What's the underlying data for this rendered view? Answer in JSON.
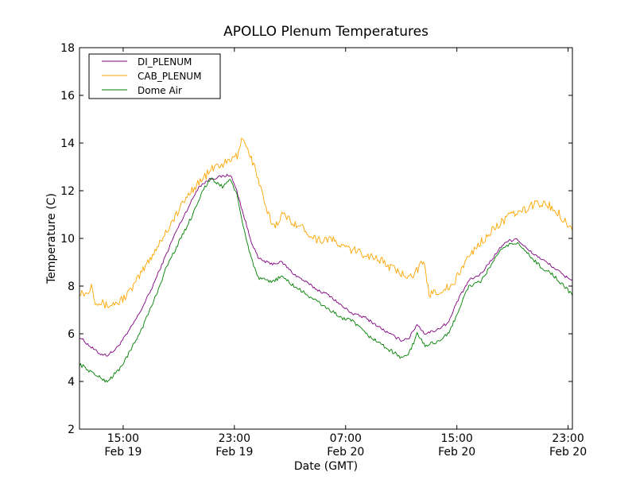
{
  "chart_data": {
    "type": "line",
    "title": "APOLLO Plenum Temperatures",
    "xlabel": "Date (GMT)",
    "ylabel": "Temperature (C)",
    "x_units": "hours since Feb 19 00:00 GMT",
    "xlim": [
      11.86,
      47.31
    ],
    "ylim": [
      2,
      18
    ],
    "yticks": [
      2,
      4,
      6,
      8,
      10,
      12,
      14,
      16,
      18
    ],
    "xticks": [
      {
        "value": 15,
        "label_time": "15:00",
        "label_date": "Feb 19"
      },
      {
        "value": 23,
        "label_time": "23:00",
        "label_date": "Feb 19"
      },
      {
        "value": 31,
        "label_time": "07:00",
        "label_date": "Feb 20"
      },
      {
        "value": 39,
        "label_time": "15:00",
        "label_date": "Feb 20"
      },
      {
        "value": 47,
        "label_time": "23:00",
        "label_date": "Feb 20"
      }
    ],
    "grid": false,
    "legend_position": "top-left",
    "series": [
      {
        "name": "DI_PLENUM",
        "color": "#800080",
        "x": [
          11.86,
          12.71,
          13.29,
          13.86,
          14.43,
          15.29,
          16.14,
          17.0,
          17.86,
          18.71,
          19.57,
          20.43,
          21.29,
          22.14,
          22.71,
          23.17,
          23.57,
          24.14,
          24.71,
          25.57,
          26.43,
          27.29,
          28.14,
          29.0,
          29.86,
          30.71,
          31.57,
          32.43,
          33.29,
          34.14,
          35.0,
          35.57,
          36.14,
          36.71,
          37.57,
          38.43,
          39.0,
          39.86,
          40.71,
          41.57,
          42.43,
          43.29,
          44.14,
          45.0,
          45.86,
          46.71,
          47.31
        ],
        "y": [
          5.87,
          5.43,
          5.17,
          5.1,
          5.33,
          6.0,
          6.83,
          7.83,
          9.0,
          10.17,
          11.17,
          12.17,
          12.5,
          12.6,
          12.67,
          12.0,
          11.17,
          10.0,
          9.17,
          8.93,
          9.0,
          8.5,
          8.17,
          7.83,
          7.6,
          7.17,
          6.83,
          6.67,
          6.33,
          6.0,
          5.73,
          5.83,
          6.4,
          6.0,
          6.17,
          6.5,
          7.33,
          8.23,
          8.5,
          9.17,
          9.83,
          10.0,
          9.5,
          9.17,
          8.83,
          8.43,
          8.27
        ]
      },
      {
        "name": "CAB_PLENUM",
        "color": "#ffa500",
        "x": [
          11.86,
          12.43,
          12.71,
          13.0,
          13.86,
          14.71,
          15.57,
          16.43,
          17.29,
          18.14,
          19.0,
          19.86,
          20.71,
          21.57,
          22.43,
          23.29,
          23.51,
          24.14,
          24.71,
          25.29,
          25.86,
          26.43,
          27.29,
          28.14,
          29.0,
          29.86,
          30.71,
          31.57,
          32.43,
          33.29,
          34.14,
          35.0,
          35.86,
          36.6,
          37.0,
          37.86,
          38.71,
          39.57,
          40.43,
          41.29,
          42.14,
          43.0,
          43.86,
          44.71,
          45.57,
          46.43,
          47.31
        ],
        "y": [
          7.77,
          7.67,
          8.1,
          7.4,
          7.17,
          7.33,
          7.83,
          8.67,
          9.5,
          10.33,
          11.17,
          12.0,
          12.5,
          13.0,
          13.17,
          13.5,
          14.33,
          13.5,
          12.5,
          11.17,
          10.5,
          11.0,
          10.67,
          10.33,
          9.93,
          10.0,
          9.67,
          9.5,
          9.33,
          9.17,
          8.83,
          8.5,
          8.5,
          9.0,
          7.67,
          7.83,
          8.0,
          9.0,
          9.67,
          10.17,
          10.67,
          11.0,
          11.17,
          11.5,
          11.4,
          11.0,
          10.33
        ]
      },
      {
        "name": "Dome Air",
        "color": "#008000",
        "x": [
          11.86,
          12.71,
          13.29,
          13.86,
          14.71,
          15.57,
          16.43,
          17.29,
          18.14,
          19.0,
          19.86,
          20.71,
          21.29,
          22.14,
          22.71,
          23.17,
          23.57,
          24.14,
          24.71,
          25.57,
          26.43,
          27.29,
          28.14,
          29.0,
          29.86,
          30.71,
          31.57,
          32.43,
          33.29,
          34.14,
          35.0,
          35.57,
          36.14,
          36.71,
          37.57,
          38.43,
          39.0,
          39.86,
          40.71,
          41.57,
          42.43,
          43.29,
          44.14,
          45.0,
          45.86,
          46.71,
          47.31
        ],
        "y": [
          4.73,
          4.4,
          4.17,
          4.0,
          4.5,
          5.33,
          6.33,
          7.5,
          8.83,
          9.83,
          10.83,
          12.0,
          12.5,
          12.17,
          12.5,
          11.83,
          10.67,
          9.33,
          8.33,
          8.17,
          8.4,
          8.0,
          7.67,
          7.33,
          7.0,
          6.67,
          6.5,
          6.0,
          5.67,
          5.33,
          5.0,
          5.17,
          6.0,
          5.5,
          5.67,
          6.0,
          6.83,
          8.0,
          8.17,
          9.0,
          9.67,
          9.83,
          9.33,
          8.83,
          8.5,
          8.0,
          7.6
        ]
      }
    ]
  }
}
